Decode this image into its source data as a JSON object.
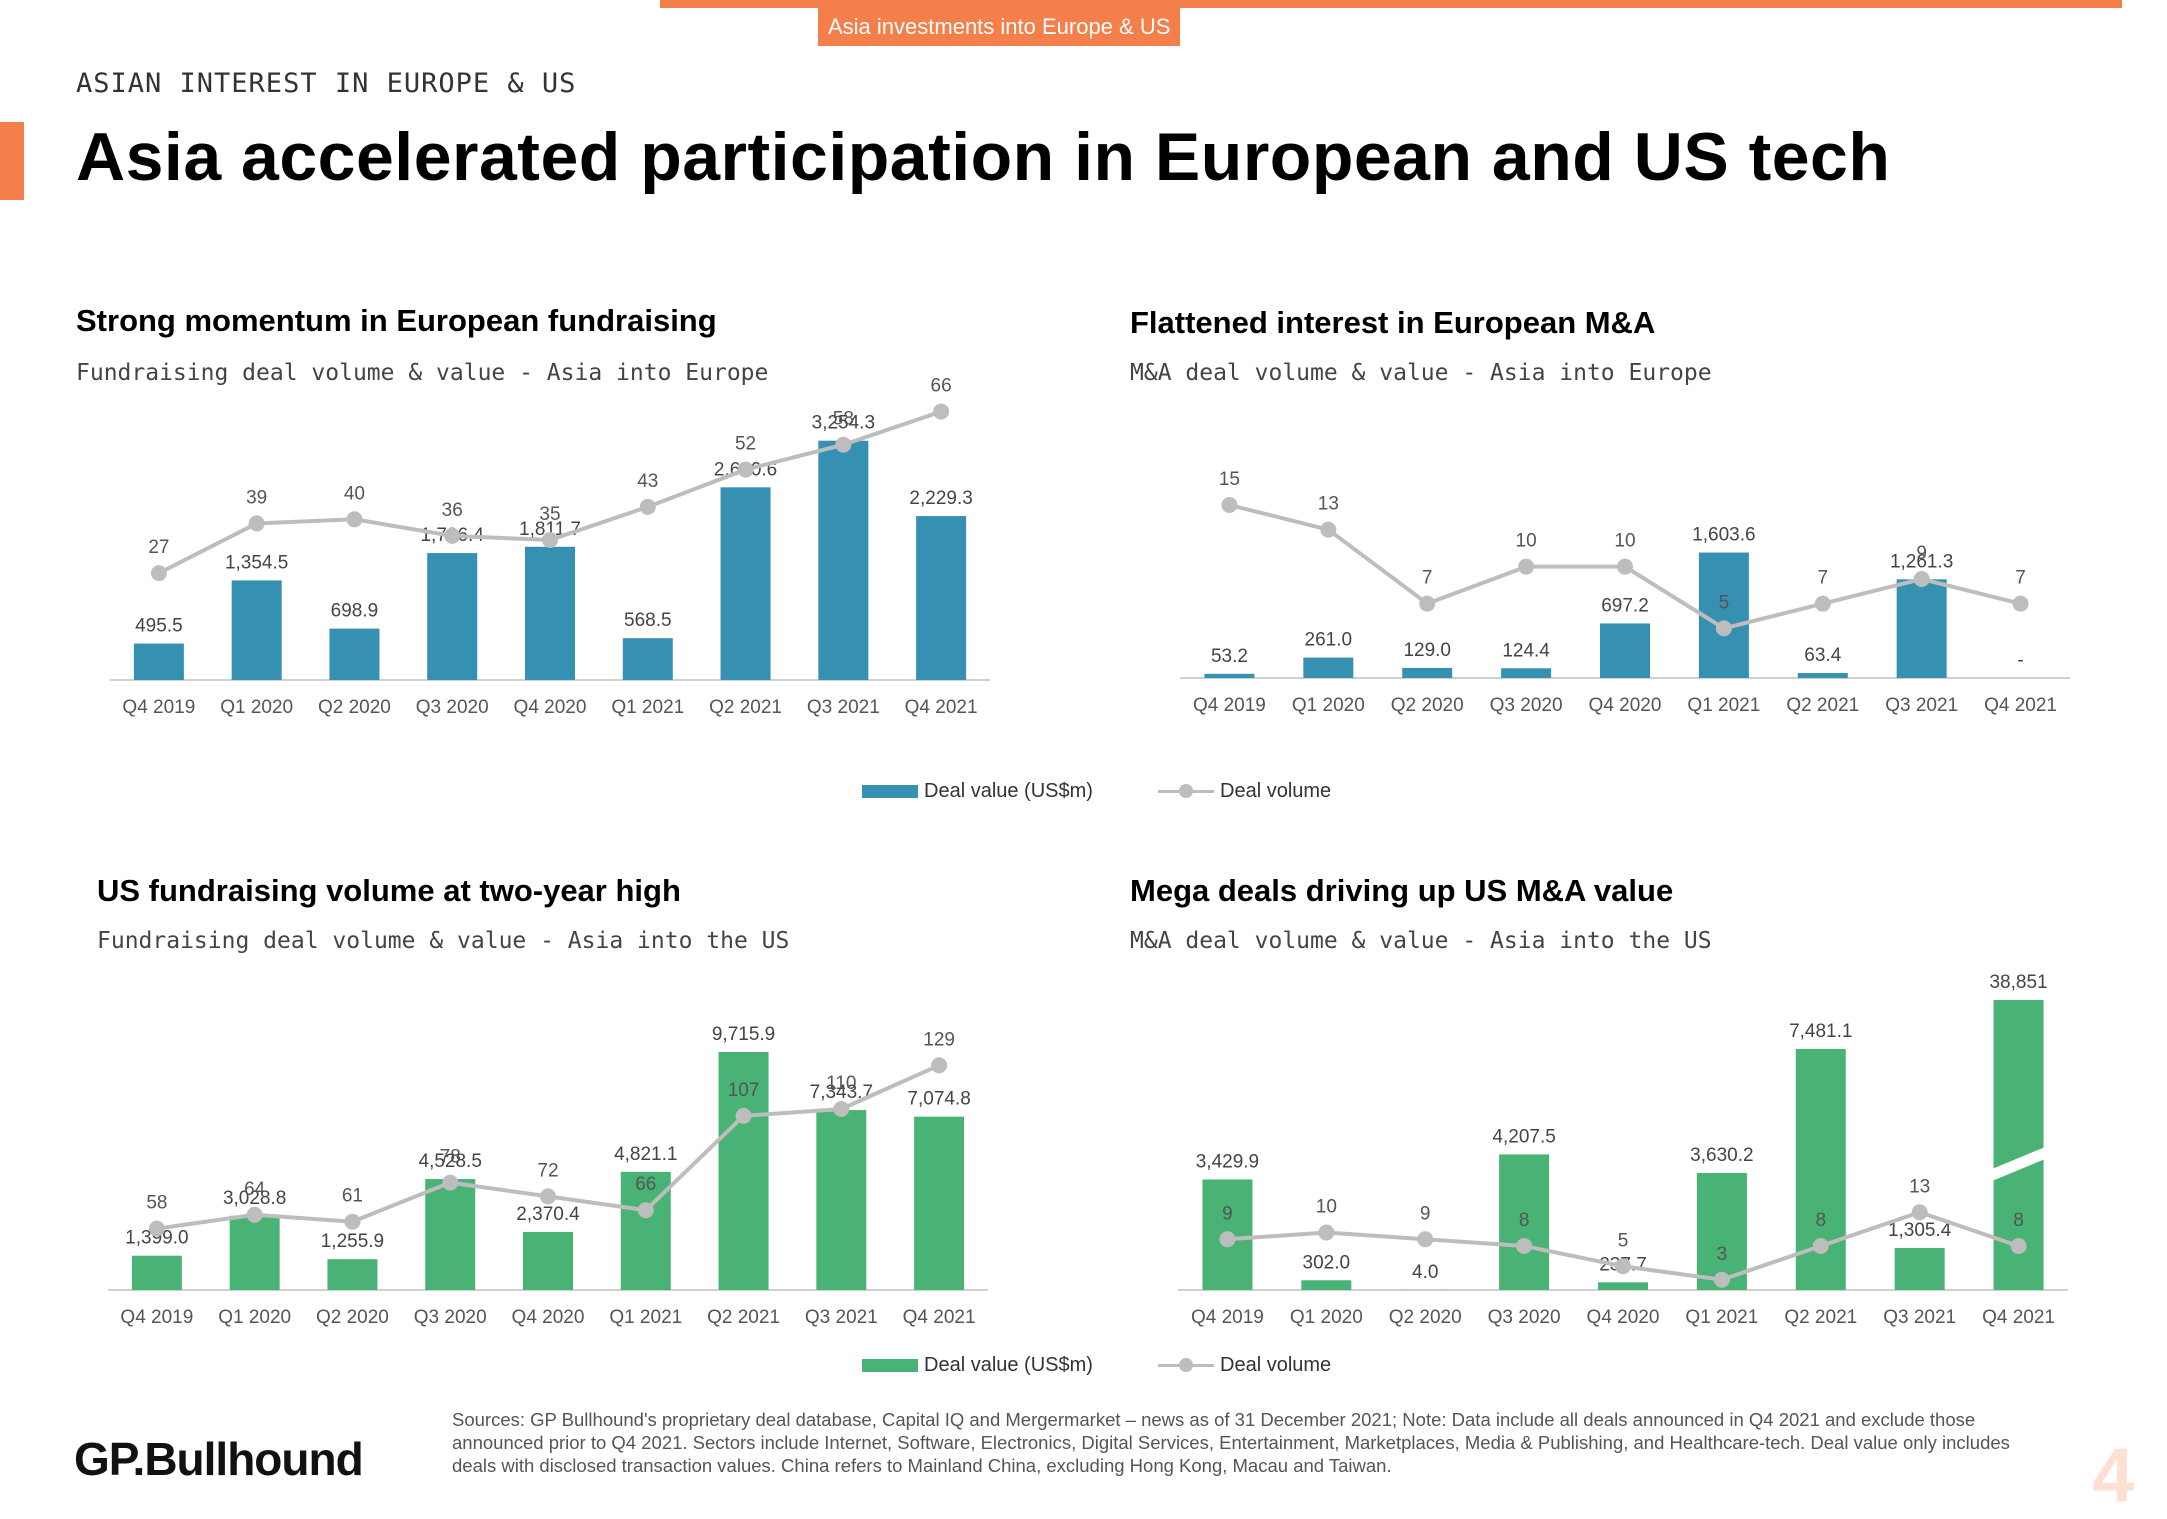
{
  "header": {
    "tag": "Asia investments into Europe & US",
    "kicker": "ASIAN INTEREST IN EUROPE & US",
    "title": "Asia accelerated participation in European and US tech"
  },
  "colors": {
    "accent": "#f47f4b",
    "eu_bar": "#3590b1",
    "us_bar": "#48b374",
    "volume_line": "#bdbdbd"
  },
  "legend_top": {
    "value_label": "Deal value (US$m)",
    "volume_label": "Deal volume"
  },
  "legend_bottom": {
    "value_label": "Deal value (US$m)",
    "volume_label": "Deal volume"
  },
  "chart_data": [
    {
      "id": "eu-fundraising",
      "type": "bar+line",
      "title": "Strong momentum in European fundraising",
      "subtitle": "Fundraising deal volume & value - Asia into Europe",
      "categories": [
        "Q4 2019",
        "Q1 2020",
        "Q2 2020",
        "Q3 2020",
        "Q4 2020",
        "Q1 2021",
        "Q2 2021",
        "Q3 2021",
        "Q4 2021"
      ],
      "series": [
        {
          "name": "Deal value (US$m)",
          "kind": "bar",
          "values": [
            495.5,
            1354.5,
            698.9,
            1726.4,
            1811.7,
            568.5,
            2620.6,
            3254.3,
            2229.3
          ],
          "labels": [
            "495.5",
            "1,354.5",
            "698.9",
            "1,726.4",
            "1,811.7",
            "568.5",
            "2,620.6",
            "3,254.3",
            "2,229.3"
          ]
        },
        {
          "name": "Deal volume",
          "kind": "line",
          "values": [
            27,
            39,
            40,
            36,
            35,
            43,
            52,
            58,
            66
          ],
          "labels": [
            "27",
            "39",
            "40",
            "36",
            "35",
            "43",
            "52",
            "58",
            "66"
          ]
        }
      ],
      "bar_ylim": [
        0,
        3400
      ],
      "line_ylim": [
        0,
        70
      ]
    },
    {
      "id": "eu-ma",
      "type": "bar+line",
      "title": "Flattened interest in European M&A",
      "subtitle": "M&A deal volume & value - Asia into Europe",
      "categories": [
        "Q4 2019",
        "Q1 2020",
        "Q2 2020",
        "Q3 2020",
        "Q4 2020",
        "Q1 2021",
        "Q2 2021",
        "Q3 2021",
        "Q4 2021"
      ],
      "series": [
        {
          "name": "Deal value (US$m)",
          "kind": "bar",
          "values": [
            53.2,
            261.0,
            129.0,
            124.4,
            697.2,
            1603.6,
            63.4,
            1261.3,
            0
          ],
          "labels": [
            "53.2",
            "261.0",
            "129.0",
            "124.4",
            "697.2",
            "1,603.6",
            "63.4",
            "1,261.3",
            "-"
          ]
        },
        {
          "name": "Deal volume",
          "kind": "line",
          "values": [
            15,
            13,
            7,
            10,
            10,
            5,
            7,
            9,
            7
          ],
          "labels": [
            "15",
            "13",
            "7",
            "10",
            "10",
            "5",
            "7",
            "9",
            "7"
          ]
        }
      ],
      "bar_ylim": [
        0,
        1700
      ],
      "line_ylim": [
        0,
        30
      ]
    },
    {
      "id": "us-fundraising",
      "type": "bar+line",
      "title": "US fundraising volume at two-year high",
      "subtitle": "Fundraising deal volume & value - Asia into the US",
      "categories": [
        "Q4 2019",
        "Q1 2020",
        "Q2 2020",
        "Q3 2020",
        "Q4 2020",
        "Q1 2021",
        "Q2 2021",
        "Q3 2021",
        "Q4 2021"
      ],
      "series": [
        {
          "name": "Deal value (US$m)",
          "kind": "bar",
          "values": [
            1399.0,
            3028.8,
            1255.9,
            4528.5,
            2370.4,
            4821.1,
            9715.9,
            7343.7,
            7074.8
          ],
          "labels": [
            "1,399.0",
            "3,028.8",
            "1,255.9",
            "4,528.5",
            "2,370.4",
            "4,821.1",
            "9,715.9",
            "7,343.7",
            "7,074.8"
          ]
        },
        {
          "name": "Deal volume",
          "kind": "line",
          "values": [
            58,
            64,
            61,
            78,
            72,
            66,
            107,
            110,
            129
          ],
          "labels": [
            "58",
            "64",
            "61",
            "78",
            "72",
            "66",
            "107",
            "110",
            "129"
          ]
        }
      ],
      "bar_ylim": [
        0,
        10000
      ],
      "line_ylim": [
        0,
        140
      ]
    },
    {
      "id": "us-ma",
      "type": "bar+line",
      "title": "Mega deals driving up US M&A value",
      "subtitle": "M&A deal volume & value - Asia into the US",
      "categories": [
        "Q4 2019",
        "Q1 2020",
        "Q2 2020",
        "Q3 2020",
        "Q4 2020",
        "Q1 2021",
        "Q2 2021",
        "Q3 2021",
        "Q4 2021"
      ],
      "series": [
        {
          "name": "Deal value (US$m)",
          "kind": "bar",
          "values": [
            3429.9,
            302.0,
            4.0,
            4207.5,
            237.7,
            3630.2,
            7481.1,
            1305.4,
            38851
          ],
          "labels": [
            "3,429.9",
            "302.0",
            "4.0",
            "4,207.5",
            "237.7",
            "3,630.2",
            "7,481.1",
            "1,305.4",
            "38,851"
          ]
        },
        {
          "name": "Deal volume",
          "kind": "line",
          "values": [
            9,
            10,
            9,
            8,
            5,
            3,
            8,
            13,
            8
          ],
          "labels": [
            "9",
            "10",
            "9",
            "8",
            "5",
            "3",
            "8",
            "13",
            "8"
          ]
        }
      ],
      "bar_ylim": [
        0,
        9000
      ],
      "line_ylim": [
        0,
        80
      ],
      "axis_break": "Q4 2021"
    }
  ],
  "footer": {
    "logo": "GP.Bullhound",
    "sources": "Sources: GP Bullhound's proprietary deal database, Capital IQ and Mergermarket – news as of 31 December 2021; Note: Data include all deals announced in Q4 2021 and exclude those announced prior to Q4 2021. Sectors include Internet, Software, Electronics, Digital Services, Entertainment, Marketplaces, Media & Publishing, and Healthcare-tech. Deal value only includes deals with disclosed transaction values. China refers to Mainland China, excluding Hong Kong, Macau and Taiwan.",
    "page_number": "4"
  }
}
